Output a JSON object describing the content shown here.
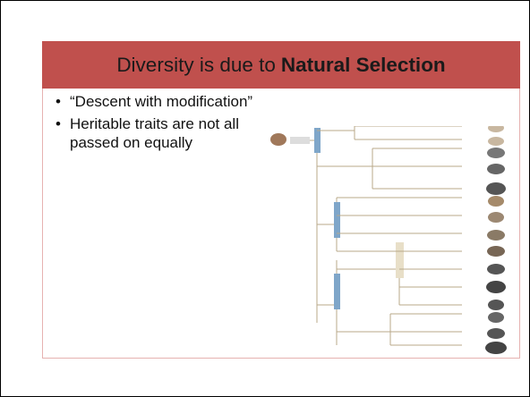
{
  "slide": {
    "title": {
      "plain": "Diversity is due to",
      "bold": "Natural Selection"
    },
    "bullets": [
      "“Descent with modification”",
      "Heritable traits are not all passed on equally"
    ]
  }
}
